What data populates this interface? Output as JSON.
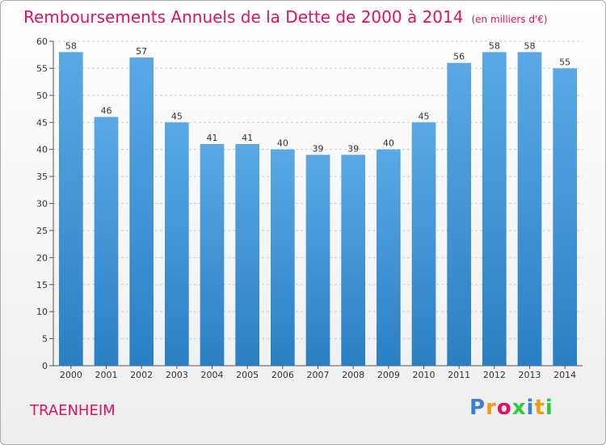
{
  "header": {
    "title": "Remboursements Annuels de la Dette de 2000 à 2014",
    "unit": "(en milliers d'€)"
  },
  "footer": {
    "commune": "TRAENHEIM",
    "logo_letters": [
      "P",
      "r",
      "o",
      "x",
      "i",
      "t",
      "i"
    ],
    "logo_colors": [
      "#3a7fd5",
      "#f39c12",
      "#e0115f",
      "#2ecc40",
      "#3a7fd5",
      "#f39c12",
      "#2ecc40"
    ]
  },
  "chart_data": {
    "type": "bar",
    "title": "Remboursements Annuels de la Dette de 2000 à 2014",
    "categories": [
      "2000",
      "2001",
      "2002",
      "2003",
      "2004",
      "2005",
      "2006",
      "2007",
      "2008",
      "2009",
      "2010",
      "2011",
      "2012",
      "2013",
      "2014"
    ],
    "values": [
      58,
      46,
      57,
      45,
      41,
      41,
      40,
      39,
      39,
      40,
      45,
      56,
      58,
      58,
      55
    ],
    "ylim": [
      0,
      60
    ],
    "yticks": [
      0,
      5,
      10,
      15,
      20,
      25,
      30,
      35,
      40,
      45,
      50,
      55,
      60
    ],
    "grid": true,
    "bar_color": "#5aa9e6",
    "bar_color_dark": "#2a7fc4",
    "grid_color": "#cccccc",
    "title_color": "#e0115f"
  }
}
